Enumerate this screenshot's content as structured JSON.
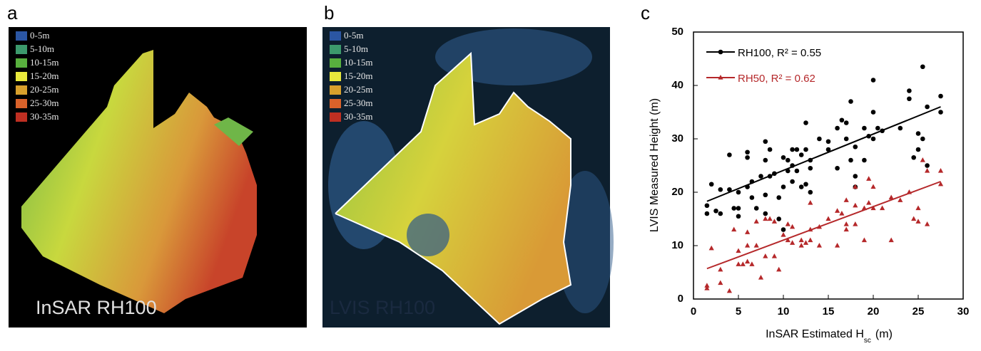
{
  "panels": {
    "legend_colors": [
      "#2b56a3",
      "#3c9a6c",
      "#58b03e",
      "#e8e83c",
      "#d8a02c",
      "#d9622a",
      "#bf2f22"
    ],
    "a": {
      "label": "a",
      "legend": [
        "0-5m",
        "5-10m",
        "10-15m",
        "15-20m",
        "20-25m",
        "25-30m",
        "30-35m"
      ],
      "caption": "InSAR RH100"
    },
    "b": {
      "label": "b",
      "legend": [
        "0-5m",
        "5-10m",
        "10-15m",
        "15-20m",
        "20-25m",
        "25-30m",
        "30-35m"
      ],
      "caption": "LVIS RH100"
    },
    "c": {
      "label": "c"
    }
  },
  "chart_data": {
    "type": "scatter",
    "xlabel": [
      "InSAR Estimated H",
      "sc",
      "(m)"
    ],
    "ylabel": "LVIS Measured Height (m)",
    "xlim": [
      0,
      30
    ],
    "xticks": [
      0,
      5,
      10,
      15,
      20,
      25,
      30
    ],
    "ylim": [
      0,
      50
    ],
    "yticks": [
      0,
      10,
      20,
      30,
      40,
      50
    ],
    "series": [
      {
        "name": "RH100, R² = 0.55",
        "color": "#000000",
        "marker": "circle",
        "fit": {
          "x": [
            1.5,
            27.5
          ],
          "y": [
            18.3,
            36
          ]
        },
        "x": [
          1.5,
          1.5,
          2,
          2.5,
          3,
          3,
          4,
          4,
          4.5,
          5,
          5,
          5,
          6,
          6,
          6,
          6.5,
          6.5,
          7,
          7.5,
          8,
          8,
          8,
          8,
          8.5,
          8.5,
          9,
          9.5,
          9.5,
          10,
          10,
          10,
          10.5,
          10.5,
          11,
          11,
          11,
          11.5,
          11.5,
          12,
          12,
          12.5,
          12.5,
          12.5,
          13,
          13,
          13,
          14,
          15,
          15,
          16,
          16,
          16.5,
          17,
          17,
          17.5,
          17.5,
          18,
          18,
          18,
          19,
          19,
          19.5,
          20,
          20,
          20,
          20.5,
          21,
          23,
          24,
          24,
          24.5,
          25,
          25,
          25.5,
          25.5,
          26,
          26,
          27.5,
          27.5
        ],
        "values": [
          16,
          17.5,
          21.5,
          16.5,
          20.5,
          16,
          27,
          20.5,
          17,
          15.5,
          17,
          20,
          27.5,
          26.5,
          21,
          19,
          22,
          17,
          23,
          29.5,
          26,
          19.5,
          16,
          28,
          23,
          23.5,
          19,
          15,
          26.5,
          21,
          13,
          26,
          24,
          28,
          25,
          22,
          28,
          24,
          27,
          21,
          33,
          28,
          21.5,
          26,
          24.5,
          20,
          30,
          29.5,
          28,
          32,
          24.5,
          33.5,
          33,
          30,
          37,
          26,
          28.5,
          23,
          21,
          32,
          26,
          30.5,
          41,
          35,
          30,
          32,
          31.5,
          32,
          37.5,
          39,
          26.5,
          28,
          31,
          43.5,
          30,
          25,
          36,
          38,
          35
        ]
      },
      {
        "name": "RH50,  R² = 0.62",
        "color": "#b5282a",
        "marker": "triangle",
        "fit": {
          "x": [
            1.5,
            27.5
          ],
          "y": [
            5.7,
            22
          ]
        },
        "x": [
          1.5,
          1.5,
          2,
          3,
          3,
          4,
          4.5,
          5,
          5,
          5.5,
          6,
          6,
          6,
          6.5,
          7,
          7,
          7.5,
          8,
          8,
          8.5,
          9,
          9,
          9.5,
          10,
          10.5,
          10.5,
          11,
          11,
          12,
          12,
          12.5,
          13,
          13,
          13,
          14,
          14,
          15,
          16,
          16,
          16.5,
          17,
          17,
          17,
          18,
          18,
          18,
          19,
          19,
          19.5,
          19.5,
          20,
          20,
          21,
          22,
          22,
          23,
          24,
          24.5,
          25,
          25,
          25.5,
          26,
          26,
          27.5,
          27.5
        ],
        "values": [
          2,
          2.5,
          9.5,
          5.5,
          3,
          1.5,
          13,
          9,
          6.5,
          6.5,
          7,
          10,
          12.5,
          6.5,
          10,
          14.5,
          4,
          15,
          8,
          15,
          14.5,
          8,
          5.5,
          12,
          14,
          11,
          10.5,
          13.5,
          11,
          10,
          10.5,
          18,
          13,
          11,
          10,
          13.5,
          15,
          16.5,
          10,
          16,
          18.5,
          14,
          13,
          17.5,
          21,
          14,
          17,
          11,
          22.5,
          18,
          21,
          17,
          17,
          19,
          11,
          18.5,
          20,
          15,
          14.5,
          17,
          26,
          24,
          14,
          24,
          21.5
        ]
      }
    ]
  }
}
